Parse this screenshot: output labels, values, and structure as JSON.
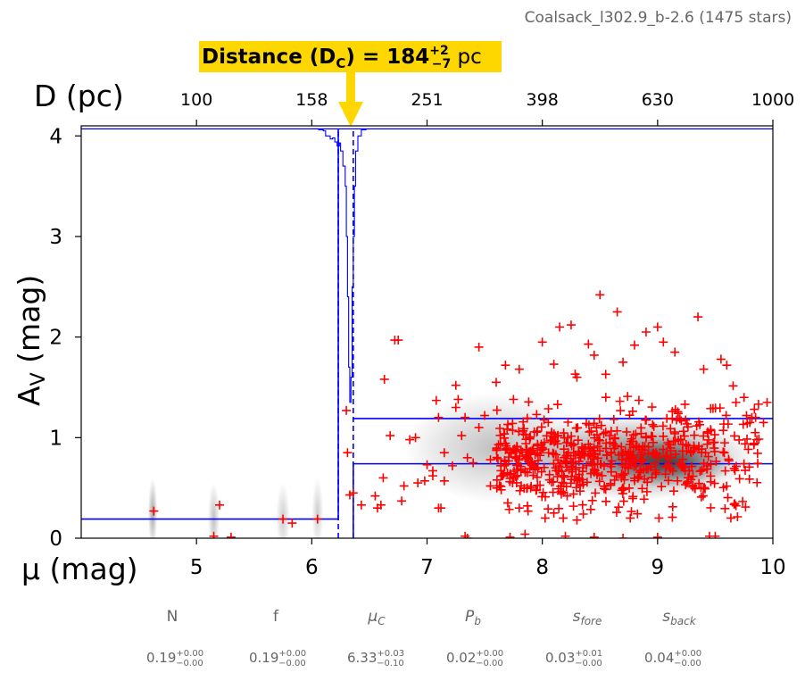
{
  "chart_data": {
    "type": "scatter",
    "title": "Coalsack_l302.9_b-2.6 (1475 stars)",
    "annotation": {
      "prefix": "Distance (D",
      "sub": "C",
      "mid": ") = 184",
      "sup": "+2",
      "low": "−7",
      "unit": " pc"
    },
    "xlabel": "μ (mag)",
    "ylabel": {
      "main": "A",
      "sub": "V",
      "rest": " (mag)"
    },
    "top_axis_label": "D (pc)",
    "xlim": [
      4,
      10
    ],
    "ylim": [
      0,
      4.1
    ],
    "xticks": [
      5,
      6,
      7,
      8,
      9,
      10
    ],
    "xtick_labels": [
      "5",
      "6",
      "7",
      "8",
      "9",
      "10"
    ],
    "yticks": [
      0,
      1,
      2,
      3,
      4
    ],
    "ytick_labels": [
      "0",
      "1",
      "2",
      "3",
      "4"
    ],
    "top_ticks_mu": [
      5,
      6,
      7,
      8,
      9,
      10
    ],
    "top_tick_labels": [
      "100",
      "158",
      "251",
      "398",
      "630",
      "1000"
    ],
    "distance_modulus": 6.33,
    "distance_modulus_band": [
      6.23,
      6.36
    ],
    "foreground_extinction": 0.19,
    "background_extinction": 0.74,
    "background_extinction_upper": 1.19,
    "grid": false,
    "colors": {
      "points": "#ff0000",
      "model": "#0000ff",
      "annotation_bg": "#ffd700",
      "param_text": "#666666"
    },
    "posterior_profile": [
      [
        6.0,
        4.07
      ],
      [
        6.06,
        4.06
      ],
      [
        6.1,
        4.05
      ],
      [
        6.12,
        4.0
      ],
      [
        6.16,
        3.97
      ],
      [
        6.18,
        3.98
      ],
      [
        6.2,
        3.94
      ],
      [
        6.22,
        3.9
      ],
      [
        6.24,
        3.93
      ],
      [
        6.25,
        3.85
      ],
      [
        6.27,
        3.7
      ],
      [
        6.29,
        3.5
      ],
      [
        6.3,
        3.0
      ],
      [
        6.31,
        2.4
      ],
      [
        6.32,
        1.7
      ],
      [
        6.33,
        1.35
      ],
      [
        6.34,
        1.6
      ],
      [
        6.35,
        2.5
      ],
      [
        6.36,
        3.0
      ],
      [
        6.37,
        3.5
      ],
      [
        6.38,
        3.85
      ],
      [
        6.4,
        4.0
      ],
      [
        6.43,
        4.06
      ],
      [
        6.47,
        4.07
      ]
    ],
    "density_clouds": [
      {
        "mu": 8.8,
        "av": 0.8,
        "sx": 1.05,
        "sy": 0.42,
        "alpha": 0.55
      },
      {
        "mu": 9.1,
        "av": 0.75,
        "sx": 0.55,
        "sy": 0.25,
        "alpha": 0.6
      },
      {
        "mu": 7.6,
        "av": 0.9,
        "sx": 0.8,
        "sy": 0.55,
        "alpha": 0.25
      },
      {
        "mu": 4.62,
        "av": 0.25,
        "sx": 0.04,
        "sy": 0.35,
        "alpha": 0.35
      },
      {
        "mu": 5.15,
        "av": 0.2,
        "sx": 0.05,
        "sy": 0.35,
        "alpha": 0.25
      },
      {
        "mu": 5.75,
        "av": 0.2,
        "sx": 0.06,
        "sy": 0.35,
        "alpha": 0.2
      },
      {
        "mu": 6.05,
        "av": 0.25,
        "sx": 0.05,
        "sy": 0.35,
        "alpha": 0.2
      }
    ],
    "scatter_sparse": [
      [
        4.63,
        0.27
      ],
      [
        5.2,
        0.33
      ],
      [
        5.15,
        0.02
      ],
      [
        5.3,
        0.01
      ],
      [
        5.75,
        0.19
      ],
      [
        5.83,
        0.15
      ],
      [
        6.05,
        0.19
      ],
      [
        6.3,
        1.27
      ],
      [
        6.31,
        0.85
      ],
      [
        6.33,
        0.43
      ],
      [
        6.36,
        0.45
      ],
      [
        6.43,
        0.33
      ],
      [
        6.55,
        0.42
      ],
      [
        6.6,
        0.33
      ],
      [
        6.62,
        0.6
      ],
      [
        6.57,
        0.3
      ],
      [
        6.63,
        1.58
      ],
      [
        6.68,
        1.02
      ],
      [
        6.72,
        1.97
      ],
      [
        6.75,
        1.97
      ],
      [
        6.78,
        0.37
      ],
      [
        6.8,
        0.52
      ],
      [
        6.85,
        0.98
      ],
      [
        6.92,
        0.55
      ],
      [
        6.98,
        0.57
      ],
      [
        7.0,
        0.73
      ],
      [
        7.05,
        0.67
      ],
      [
        7.05,
        0.62
      ],
      [
        7.08,
        1.37
      ],
      [
        7.1,
        1.2
      ],
      [
        7.1,
        0.3
      ],
      [
        7.12,
        0.3
      ],
      [
        7.15,
        0.57
      ],
      [
        7.15,
        0.85
      ],
      [
        7.22,
        0.72
      ],
      [
        7.25,
        1.52
      ],
      [
        7.27,
        1.38
      ],
      [
        7.3,
        1.02
      ],
      [
        7.33,
        1.2
      ],
      [
        7.35,
        0.8
      ],
      [
        7.4,
        0.75
      ],
      [
        7.45,
        1.9
      ],
      [
        7.5,
        1.22
      ],
      [
        7.55,
        0.78
      ],
      [
        7.6,
        1.55
      ],
      [
        7.62,
        0.93
      ],
      [
        7.68,
        1.72
      ],
      [
        7.7,
        0.35
      ],
      [
        7.75,
        1.38
      ],
      [
        7.8,
        1.68
      ],
      [
        7.87,
        0.5
      ],
      [
        7.95,
        0.48
      ],
      [
        8.0,
        1.95
      ],
      [
        8.1,
        1.73
      ],
      [
        8.15,
        2.1
      ],
      [
        8.25,
        2.12
      ],
      [
        8.3,
        1.6
      ],
      [
        8.4,
        1.93
      ],
      [
        8.45,
        1.82
      ],
      [
        8.5,
        2.42
      ],
      [
        8.55,
        1.63
      ],
      [
        8.65,
        2.25
      ],
      [
        8.7,
        1.75
      ],
      [
        8.8,
        1.92
      ],
      [
        8.9,
        2.05
      ],
      [
        9.0,
        2.1
      ],
      [
        9.05,
        1.95
      ],
      [
        9.15,
        1.85
      ],
      [
        9.35,
        2.2
      ],
      [
        9.4,
        1.68
      ],
      [
        9.55,
        1.78
      ],
      [
        9.6,
        1.72
      ],
      [
        9.68,
        1.35
      ],
      [
        9.75,
        1.4
      ],
      [
        9.8,
        1.15
      ],
      [
        9.85,
        1.2
      ],
      [
        9.95,
        1.35
      ],
      [
        7.33,
        0.02
      ],
      [
        7.35,
        0.0
      ],
      [
        7.72,
        0.01
      ],
      [
        7.85,
        0.04
      ],
      [
        8.2,
        0.02
      ],
      [
        8.45,
        0.01
      ],
      [
        9.5,
        0.02
      ],
      [
        8.7,
        0.0
      ],
      [
        9.0,
        0.01
      ],
      [
        9.45,
        0.02
      ],
      [
        7.8,
        0.3
      ],
      [
        8.1,
        0.25
      ],
      [
        8.3,
        0.18
      ],
      [
        7.65,
        0.62
      ],
      [
        7.25,
        1.3
      ],
      [
        7.45,
        1.1
      ],
      [
        6.9,
        1.0
      ],
      [
        7.9,
        0.75
      ],
      [
        7.55,
        0.52
      ]
    ],
    "scatter_dense_cluster": {
      "count": 620,
      "mu_range": [
        7.6,
        9.95
      ],
      "av_center": 0.8,
      "av_spread": 0.33,
      "seed": 17
    },
    "parameters": [
      {
        "name": "N",
        "value": "0.19",
        "plus": "+0.00",
        "minus": "−0.00"
      },
      {
        "name": "f",
        "value": "0.19",
        "plus": "+0.00",
        "minus": "−0.00"
      },
      {
        "name": "μ",
        "sub": "C",
        "value": "6.33",
        "plus": "+0.03",
        "minus": "−0.10"
      },
      {
        "name": "P",
        "sub": "b",
        "value": "0.02",
        "plus": "+0.00",
        "minus": "−0.00"
      },
      {
        "name": "s",
        "sub": "fore",
        "value": "0.03",
        "plus": "+0.01",
        "minus": "−0.00"
      },
      {
        "name": "s",
        "sub": "back",
        "value": "0.04",
        "plus": "+0.00",
        "minus": "−0.00"
      }
    ]
  }
}
